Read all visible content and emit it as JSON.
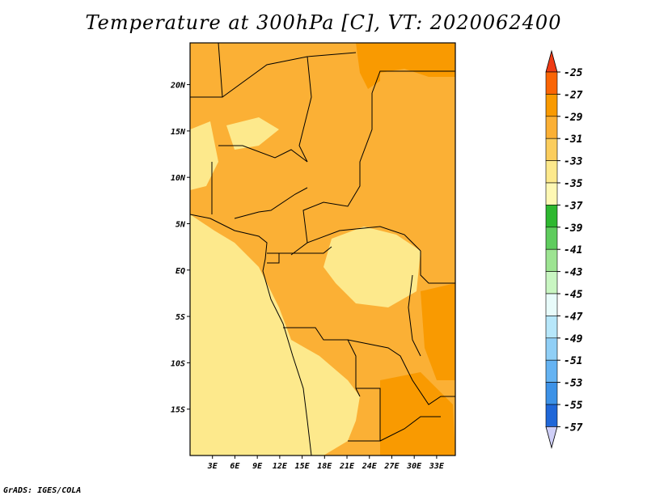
{
  "title": "Temperature at 300hPa [C], VT: 2020062400",
  "credit": "GrADS: IGES/COLA",
  "chart_data": {
    "type": "heatmap",
    "variable": "Temperature at 300hPa",
    "units": "C",
    "valid_time": "2020062400",
    "lon_range": [
      0,
      35.5
    ],
    "lat_range": [
      -20,
      24.5
    ],
    "x_ticks": [
      "3E",
      "6E",
      "9E",
      "12E",
      "15E",
      "18E",
      "21E",
      "24E",
      "27E",
      "30E",
      "33E"
    ],
    "x_tick_values": [
      3,
      6,
      9,
      12,
      15,
      18,
      21,
      24,
      27,
      30,
      33
    ],
    "y_ticks": [
      "20N",
      "15N",
      "10N",
      "5N",
      "EQ",
      "5S",
      "10S",
      "15S"
    ],
    "y_tick_values": [
      20,
      15,
      10,
      5,
      0,
      -5,
      -10,
      -15
    ],
    "colorbar": {
      "labels": [
        "-25",
        "-27",
        "-29",
        "-31",
        "-33",
        "-35",
        "-37",
        "-39",
        "-41",
        "-43",
        "-45",
        "-47",
        "-49",
        "-51",
        "-53",
        "-55",
        "-57"
      ],
      "colors": [
        "#ef3b15",
        "#fa6505",
        "#f99a01",
        "#fbb035",
        "#fbcd5d",
        "#fde98c",
        "#fef8b4",
        "#2eb830",
        "#5fcc5e",
        "#9de492",
        "#c9f6c2",
        "#e8fbfa",
        "#b7e7fa",
        "#90cff6",
        "#65b3f2",
        "#3d92e7",
        "#2067d8",
        "#1443b6",
        "#0b2c94",
        "#cfcff7"
      ]
    },
    "field_levels": {
      "warm_north_east": "-29 to -27",
      "bulk": "-31 to -29",
      "southwest": "-33 to -31"
    }
  }
}
